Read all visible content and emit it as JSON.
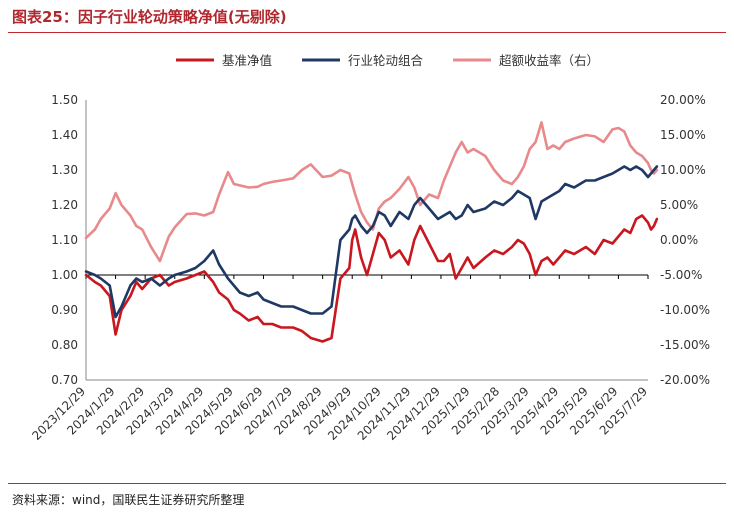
{
  "figure": {
    "title": "图表25：因子行业轮动策略净值(无剔除)",
    "source": "资料来源：wind，国联民生证券研究所整理"
  },
  "colors": {
    "benchmark": "#c8171e",
    "strategy": "#1f3864",
    "excess": "#e8898c",
    "title": "#b0272e",
    "rule": "#c0272d",
    "axis_text": "#333333"
  },
  "chart_data": {
    "type": "line",
    "title": "",
    "legend_position": "top-center",
    "categories": [
      "2023/12/29",
      "2024/1/29",
      "2024/2/29",
      "2024/3/29",
      "2024/4/29",
      "2024/5/29",
      "2024/6/29",
      "2024/7/29",
      "2024/8/29",
      "2024/9/29",
      "2024/10/29",
      "2024/11/29",
      "2024/12/29",
      "2025/1/29",
      "2025/2/28",
      "2025/3/29",
      "2025/4/29",
      "2025/5/29",
      "2025/6/29",
      "2025/7/29"
    ],
    "y_left": {
      "ylim": [
        0.7,
        1.5
      ],
      "ticks": [
        "0.70",
        "0.80",
        "0.90",
        "1.00",
        "1.10",
        "1.20",
        "1.30",
        "1.40",
        "1.50"
      ]
    },
    "y_right": {
      "ylim": [
        -20,
        20
      ],
      "ticks": [
        "-20.00%",
        "-15.00%",
        "-10.00%",
        "-5.00%",
        "0.00%",
        "5.00%",
        "10.00%",
        "15.00%",
        "20.00%"
      ]
    },
    "series": [
      {
        "name": "基准净值",
        "axis": "left",
        "color_key": "benchmark",
        "x": [
          0,
          0.3,
          0.5,
          0.8,
          1.0,
          1.2,
          1.5,
          1.7,
          1.9,
          2.2,
          2.5,
          2.8,
          3.0,
          3.4,
          3.7,
          4.0,
          4.3,
          4.5,
          4.8,
          5.0,
          5.2,
          5.5,
          5.8,
          6.0,
          6.3,
          6.6,
          7.0,
          7.3,
          7.6,
          8.0,
          8.3,
          8.6,
          8.9,
          9.0,
          9.1,
          9.3,
          9.5,
          9.7,
          9.9,
          10.1,
          10.3,
          10.6,
          10.9,
          11.1,
          11.3,
          11.6,
          11.9,
          12.1,
          12.3,
          12.5,
          12.7,
          12.9,
          13.1,
          13.5,
          13.8,
          14.1,
          14.4,
          14.6,
          14.8,
          15.0,
          15.2,
          15.4,
          15.6,
          15.8,
          16.0,
          16.2,
          16.5,
          16.9,
          17.2,
          17.5,
          17.8,
          18.0,
          18.2,
          18.4,
          18.6,
          18.8,
          19.0,
          19.1,
          19.2,
          19.3
        ],
        "values": [
          1.0,
          0.98,
          0.97,
          0.94,
          0.83,
          0.9,
          0.94,
          0.98,
          0.96,
          0.99,
          1.0,
          0.97,
          0.98,
          0.99,
          1.0,
          1.01,
          0.98,
          0.95,
          0.93,
          0.9,
          0.89,
          0.87,
          0.88,
          0.86,
          0.86,
          0.85,
          0.85,
          0.84,
          0.82,
          0.81,
          0.82,
          0.99,
          1.02,
          1.1,
          1.13,
          1.05,
          1.0,
          1.06,
          1.12,
          1.1,
          1.05,
          1.07,
          1.03,
          1.1,
          1.14,
          1.09,
          1.04,
          1.04,
          1.06,
          0.99,
          1.02,
          1.05,
          1.02,
          1.05,
          1.07,
          1.06,
          1.08,
          1.1,
          1.09,
          1.06,
          1.0,
          1.04,
          1.05,
          1.03,
          1.05,
          1.07,
          1.06,
          1.08,
          1.06,
          1.1,
          1.09,
          1.11,
          1.13,
          1.12,
          1.16,
          1.17,
          1.15,
          1.13,
          1.14,
          1.16
        ]
      },
      {
        "name": "行业轮动组合",
        "axis": "left",
        "color_key": "strategy",
        "x": [
          0,
          0.3,
          0.5,
          0.8,
          1.0,
          1.2,
          1.5,
          1.7,
          1.9,
          2.2,
          2.5,
          2.8,
          3.0,
          3.4,
          3.7,
          4.0,
          4.3,
          4.5,
          4.8,
          5.0,
          5.2,
          5.5,
          5.8,
          6.0,
          6.3,
          6.6,
          7.0,
          7.3,
          7.6,
          8.0,
          8.3,
          8.6,
          8.9,
          9.0,
          9.1,
          9.3,
          9.5,
          9.7,
          9.9,
          10.1,
          10.3,
          10.6,
          10.9,
          11.1,
          11.3,
          11.6,
          11.9,
          12.1,
          12.3,
          12.5,
          12.7,
          12.9,
          13.1,
          13.5,
          13.8,
          14.1,
          14.4,
          14.6,
          14.8,
          15.0,
          15.2,
          15.4,
          15.6,
          15.8,
          16.0,
          16.2,
          16.5,
          16.9,
          17.2,
          17.5,
          17.8,
          18.0,
          18.2,
          18.4,
          18.6,
          18.8,
          19.0,
          19.1,
          19.2,
          19.3
        ],
        "values": [
          1.01,
          1.0,
          0.99,
          0.97,
          0.88,
          0.91,
          0.97,
          0.99,
          0.98,
          0.99,
          0.97,
          0.99,
          1.0,
          1.01,
          1.02,
          1.04,
          1.07,
          1.03,
          0.99,
          0.97,
          0.95,
          0.94,
          0.95,
          0.93,
          0.92,
          0.91,
          0.91,
          0.9,
          0.89,
          0.89,
          0.91,
          1.1,
          1.13,
          1.16,
          1.17,
          1.14,
          1.12,
          1.14,
          1.18,
          1.17,
          1.14,
          1.18,
          1.16,
          1.2,
          1.22,
          1.19,
          1.16,
          1.17,
          1.18,
          1.16,
          1.17,
          1.2,
          1.18,
          1.19,
          1.21,
          1.2,
          1.22,
          1.24,
          1.23,
          1.22,
          1.16,
          1.21,
          1.22,
          1.23,
          1.24,
          1.26,
          1.25,
          1.27,
          1.27,
          1.28,
          1.29,
          1.3,
          1.31,
          1.3,
          1.31,
          1.3,
          1.28,
          1.29,
          1.3,
          1.31
        ]
      },
      {
        "name": "超额收益率（右）",
        "axis": "right",
        "color_key": "excess",
        "x": [
          0,
          0.3,
          0.5,
          0.8,
          1.0,
          1.2,
          1.5,
          1.7,
          1.9,
          2.2,
          2.5,
          2.8,
          3.0,
          3.4,
          3.7,
          4.0,
          4.3,
          4.5,
          4.8,
          5.0,
          5.2,
          5.5,
          5.8,
          6.0,
          6.3,
          6.6,
          7.0,
          7.3,
          7.6,
          8.0,
          8.3,
          8.6,
          8.9,
          9.0,
          9.1,
          9.3,
          9.5,
          9.7,
          9.9,
          10.1,
          10.3,
          10.6,
          10.9,
          11.1,
          11.3,
          11.6,
          11.9,
          12.1,
          12.3,
          12.5,
          12.7,
          12.9,
          13.1,
          13.5,
          13.8,
          14.1,
          14.4,
          14.6,
          14.8,
          15.0,
          15.2,
          15.4,
          15.6,
          15.8,
          16.0,
          16.2,
          16.5,
          16.9,
          17.2,
          17.5,
          17.8,
          18.0,
          18.2,
          18.4,
          18.6,
          18.8,
          19.0,
          19.1,
          19.2,
          19.3
        ],
        "values": [
          0.3,
          1.5,
          3.0,
          4.5,
          6.7,
          5.0,
          3.5,
          2.0,
          1.5,
          -1.0,
          -3.0,
          0.5,
          1.8,
          3.7,
          3.8,
          3.5,
          4.0,
          6.5,
          9.7,
          8.0,
          7.8,
          7.5,
          7.6,
          8.0,
          8.3,
          8.5,
          8.8,
          10.0,
          10.8,
          9.0,
          9.2,
          10.0,
          9.5,
          8.0,
          6.5,
          4.0,
          2.5,
          1.5,
          4.5,
          5.5,
          6.0,
          7.3,
          9.0,
          7.5,
          5.0,
          6.5,
          6.0,
          8.5,
          10.5,
          12.5,
          14.0,
          12.5,
          13.0,
          12.0,
          10.0,
          8.5,
          8.0,
          9.0,
          10.5,
          13.0,
          14.0,
          16.8,
          13.0,
          13.5,
          13.0,
          14.0,
          14.5,
          15.0,
          14.8,
          14.0,
          15.8,
          16.0,
          15.5,
          13.5,
          12.5,
          12.0,
          11.0,
          10.0,
          9.5,
          10.0
        ]
      }
    ]
  }
}
